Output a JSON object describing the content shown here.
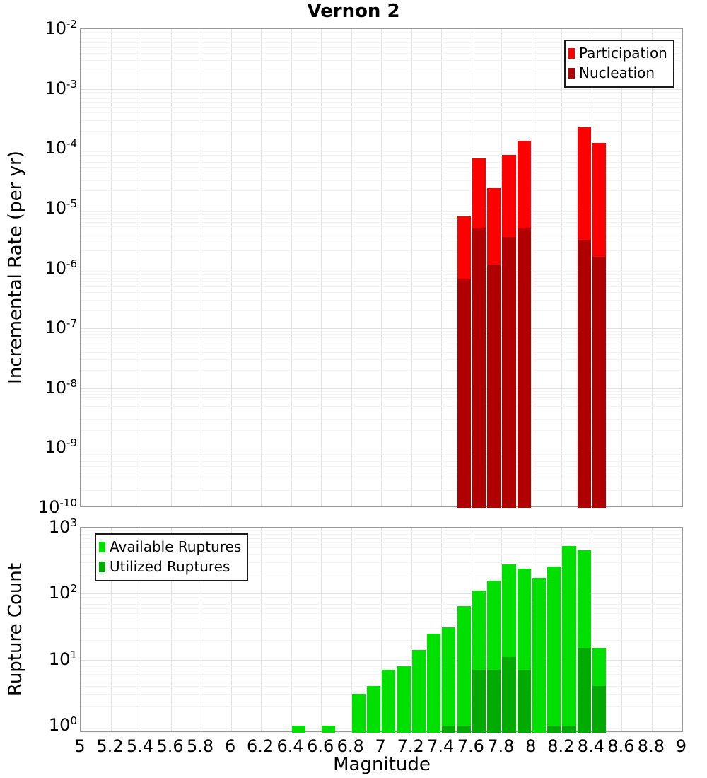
{
  "title": "Vernon 2",
  "colors": {
    "grid_major": "#e2e2e2",
    "grid_minor": "#f4f4f4",
    "plot_border": "#9a9a9a",
    "background": "#ffffff",
    "participation": "#ff0000",
    "nucleation": "#b00000",
    "available": "#00e000",
    "utilized": "#00aa00"
  },
  "chart_data": [
    {
      "type": "bar",
      "panel": "incremental-rate",
      "title": "Vernon 2",
      "ylabel": "Incremental Rate (per yr)",
      "yscale": "log",
      "ylim": [
        1e-10,
        0.01
      ],
      "xlim": [
        5,
        9
      ],
      "bin_width": 0.1,
      "grid": true,
      "legend_position": "top-right",
      "x_tick_labels": [
        "5",
        "5.2",
        "5.4",
        "5.6",
        "5.8",
        "6",
        "6.2",
        "6.4",
        "6.6",
        "6.8",
        "7",
        "7.2",
        "7.4",
        "7.6",
        "7.8",
        "8",
        "8.2",
        "8.4",
        "8.6",
        "8.8",
        "9"
      ],
      "y_tick_exponents": [
        "-2",
        "-3",
        "-4",
        "-5",
        "-6",
        "-7",
        "-8",
        "-9",
        "-10"
      ],
      "series": [
        {
          "name": "Participation",
          "color": "#ff0000",
          "points": [
            [
              7.5,
              7.3e-06
            ],
            [
              7.6,
              6.9e-05
            ],
            [
              7.7,
              2.2e-05
            ],
            [
              7.8,
              8e-05
            ],
            [
              7.9,
              0.000137
            ],
            [
              8.3,
              0.00023
            ],
            [
              8.4,
              0.000125
            ]
          ]
        },
        {
          "name": "Nucleation",
          "color": "#b00000",
          "points": [
            [
              7.5,
              6.5e-07
            ],
            [
              7.6,
              4.7e-06
            ],
            [
              7.7,
              1.15e-06
            ],
            [
              7.8,
              3.4e-06
            ],
            [
              7.9,
              4.6e-06
            ],
            [
              8.3,
              3e-06
            ],
            [
              8.4,
              1.55e-06
            ]
          ]
        }
      ]
    },
    {
      "type": "bar",
      "panel": "rupture-count",
      "xlabel": "Magnitude",
      "ylabel": "Rupture Count",
      "yscale": "log",
      "ylim": [
        0.78,
        1000
      ],
      "xlim": [
        5,
        9
      ],
      "bin_width": 0.1,
      "grid": true,
      "legend_position": "top-left",
      "x_tick_labels": [
        "5",
        "5.2",
        "5.4",
        "5.6",
        "5.8",
        "6",
        "6.2",
        "6.4",
        "6.6",
        "6.8",
        "7",
        "7.2",
        "7.4",
        "7.6",
        "7.8",
        "8",
        "8.2",
        "8.4",
        "8.6",
        "8.8",
        "9"
      ],
      "y_tick_exponents": [
        "3",
        "2",
        "1",
        "0"
      ],
      "series": [
        {
          "name": "Available Ruptures",
          "color": "#00e000",
          "points": [
            [
              6.4,
              1
            ],
            [
              6.6,
              1
            ],
            [
              6.8,
              3
            ],
            [
              6.9,
              4
            ],
            [
              7.0,
              7
            ],
            [
              7.1,
              8
            ],
            [
              7.2,
              14
            ],
            [
              7.3,
              25
            ],
            [
              7.4,
              31
            ],
            [
              7.5,
              65
            ],
            [
              7.6,
              110
            ],
            [
              7.7,
              157
            ],
            [
              7.8,
              280
            ],
            [
              7.9,
              240
            ],
            [
              8.0,
              175
            ],
            [
              8.1,
              255
            ],
            [
              8.2,
              530
            ],
            [
              8.3,
              450
            ],
            [
              8.4,
              15
            ]
          ]
        },
        {
          "name": "Utilized Ruptures",
          "color": "#00aa00",
          "points": [
            [
              7.4,
              1
            ],
            [
              7.5,
              1
            ],
            [
              7.6,
              7
            ],
            [
              7.7,
              7
            ],
            [
              7.8,
              11
            ],
            [
              7.9,
              7
            ],
            [
              8.1,
              1
            ],
            [
              8.2,
              1
            ],
            [
              8.3,
              15
            ],
            [
              8.4,
              4
            ]
          ]
        }
      ]
    }
  ]
}
